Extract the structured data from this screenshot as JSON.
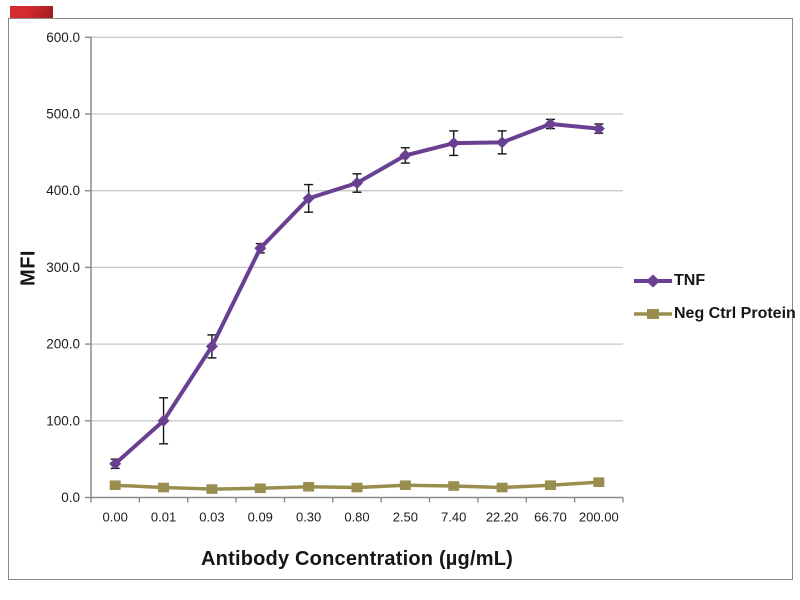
{
  "corner_badge": {
    "color": "#c4262c"
  },
  "chart_data": {
    "type": "line",
    "title": "",
    "xlabel": "Antibody Concentration (µg/mL)",
    "ylabel": "MFI",
    "ylim": [
      0,
      600
    ],
    "ytick_step": 100,
    "ytick_labels": [
      "0.0",
      "100.0",
      "200.0",
      "300.0",
      "400.0",
      "500.0",
      "600.0"
    ],
    "categories": [
      "0.00",
      "0.01",
      "0.03",
      "0.09",
      "0.30",
      "0.80",
      "2.50",
      "7.40",
      "22.20",
      "66.70",
      "200.00"
    ],
    "grid": "horizontal",
    "legend_position": "right",
    "axis_color": "#8a8a8a",
    "grid_color": "#c9c9c9",
    "error_bar_color": "#141414",
    "series": [
      {
        "name": "TNF",
        "color": "#693f91",
        "marker": "diamond",
        "values": [
          44,
          100,
          197,
          325,
          390,
          410,
          446,
          462,
          463,
          487,
          481
        ],
        "errors": [
          6,
          30,
          15,
          6,
          18,
          12,
          10,
          16,
          15,
          6,
          6
        ]
      },
      {
        "name": "Neg Ctrl Protein",
        "color": "#998e4e",
        "marker": "square",
        "values": [
          16,
          13,
          11,
          12,
          14,
          13,
          16,
          15,
          13,
          16,
          20
        ],
        "errors": [
          2,
          2,
          2,
          2,
          2,
          2,
          2,
          2,
          2,
          2,
          3
        ]
      }
    ]
  }
}
